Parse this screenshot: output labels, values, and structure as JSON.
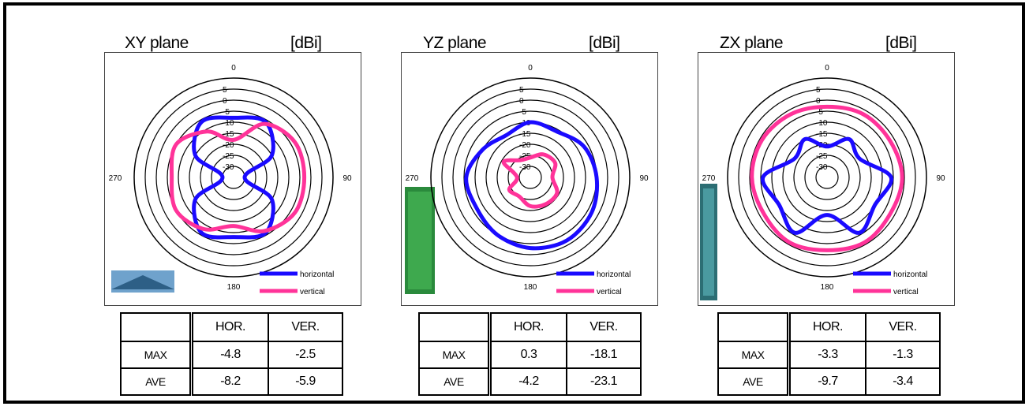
{
  "charts": [
    {
      "title": "XY plane",
      "unit": "[dBi]",
      "legend": [
        {
          "label": "horizontal",
          "color": "#1a0aff"
        },
        {
          "label": "vertical",
          "color": "#ff3399"
        }
      ],
      "table": {
        "headers": [
          "",
          "HOR.",
          "VER."
        ],
        "rows": [
          {
            "label": "MAX",
            "hor": "-4.8",
            "ver": "-2.5"
          },
          {
            "label": "AVE",
            "hor": "-8.2",
            "ver": "-5.9"
          }
        ]
      }
    },
    {
      "title": "YZ plane",
      "unit": "[dBi]",
      "legend": [
        {
          "label": "horizontal",
          "color": "#1a0aff"
        },
        {
          "label": "vertical",
          "color": "#ff3399"
        }
      ],
      "table": {
        "headers": [
          "",
          "HOR.",
          "VER."
        ],
        "rows": [
          {
            "label": "MAX",
            "hor": "0.3",
            "ver": "-18.1"
          },
          {
            "label": "AVE",
            "hor": "-4.2",
            "ver": "-23.1"
          }
        ]
      }
    },
    {
      "title": "ZX plane",
      "unit": "[dBi]",
      "legend": [
        {
          "label": "horizontal",
          "color": "#1a0aff"
        },
        {
          "label": "vertical",
          "color": "#ff3399"
        }
      ],
      "table": {
        "headers": [
          "",
          "HOR.",
          "VER."
        ],
        "rows": [
          {
            "label": "MAX",
            "hor": "-3.3",
            "ver": "-1.3"
          },
          {
            "label": "AVE",
            "hor": "-9.7",
            "ver": "-3.4"
          }
        ]
      }
    }
  ],
  "chart_data": [
    {
      "type": "polar",
      "title": "XY plane",
      "unit": "[dBi]",
      "angle_labels": [
        "0",
        "90",
        "180",
        "270"
      ],
      "r_ticks": [
        5,
        0,
        -5,
        -10,
        -15,
        -20,
        -25,
        -30
      ],
      "r_tick_labels": [
        "5",
        "0",
        "-5",
        "-10",
        "-15",
        "-20",
        "-25",
        "-30"
      ],
      "r_range": [
        -35,
        10
      ],
      "series": [
        {
          "name": "horizontal",
          "color": "#1a0aff",
          "theta_deg": [
            0,
            30,
            60,
            90,
            120,
            150,
            180,
            210,
            240,
            270,
            300,
            330
          ],
          "r_dbi": [
            -8,
            -6,
            -15,
            -30,
            -15,
            -6,
            -8,
            -6,
            -15,
            -30,
            -15,
            -6
          ]
        },
        {
          "name": "vertical",
          "color": "#ff3399",
          "theta_deg": [
            0,
            30,
            60,
            90,
            120,
            150,
            180,
            210,
            240,
            270,
            300,
            330
          ],
          "r_dbi": [
            -18,
            -7,
            -3,
            -3,
            -3,
            -7,
            -13,
            -8,
            -5,
            -7,
            -5,
            -11
          ]
        }
      ]
    },
    {
      "type": "polar",
      "title": "YZ plane",
      "unit": "[dBi]",
      "angle_labels": [
        "0",
        "90",
        "180",
        "270"
      ],
      "r_ticks": [
        5,
        0,
        -5,
        -10,
        -15,
        -20,
        -25,
        -30
      ],
      "r_tick_labels": [
        "5",
        "0",
        "-5",
        "-10",
        "-15",
        "-20",
        "-25",
        "-30"
      ],
      "r_range": [
        -35,
        10
      ],
      "series": [
        {
          "name": "horizontal",
          "color": "#1a0aff",
          "theta_deg": [
            0,
            30,
            60,
            90,
            120,
            150,
            180,
            210,
            240,
            270,
            300,
            330
          ],
          "r_dbi": [
            -10,
            -11,
            -7,
            -5,
            -3,
            -2,
            -3,
            -5,
            -7,
            -6,
            -10,
            -13
          ]
        },
        {
          "name": "vertical",
          "color": "#ff3399",
          "theta_deg": [
            0,
            30,
            60,
            90,
            120,
            150,
            180,
            210,
            240,
            270,
            300,
            330
          ],
          "r_dbi": [
            -26,
            -23,
            -22,
            -25,
            -21,
            -21,
            -22,
            -25,
            -24,
            -29,
            -21,
            -26
          ]
        }
      ]
    },
    {
      "type": "polar",
      "title": "ZX plane",
      "unit": "[dBi]",
      "angle_labels": [
        "0",
        "90",
        "180",
        "270"
      ],
      "r_ticks": [
        5,
        0,
        -5,
        -10,
        -15,
        -20,
        -25,
        -30
      ],
      "r_tick_labels": [
        "5",
        "0",
        "-5",
        "-10",
        "-15",
        "-20",
        "-25",
        "-30"
      ],
      "r_range": [
        -35,
        10
      ],
      "series": [
        {
          "name": "horizontal",
          "color": "#1a0aff",
          "theta_deg": [
            0,
            30,
            60,
            90,
            120,
            150,
            180,
            210,
            240,
            270,
            300,
            330
          ],
          "r_dbi": [
            -21,
            -15,
            -18,
            -6,
            -10,
            -6,
            -18,
            -6,
            -10,
            -6,
            -18,
            -15
          ]
        },
        {
          "name": "vertical",
          "color": "#ff3399",
          "theta_deg": [
            0,
            30,
            60,
            90,
            120,
            150,
            180,
            210,
            240,
            270,
            300,
            330
          ],
          "r_dbi": [
            -3,
            -2,
            -2,
            -1,
            -2,
            -1,
            -2,
            -1,
            -2,
            -1,
            -1,
            -2
          ]
        }
      ]
    }
  ]
}
